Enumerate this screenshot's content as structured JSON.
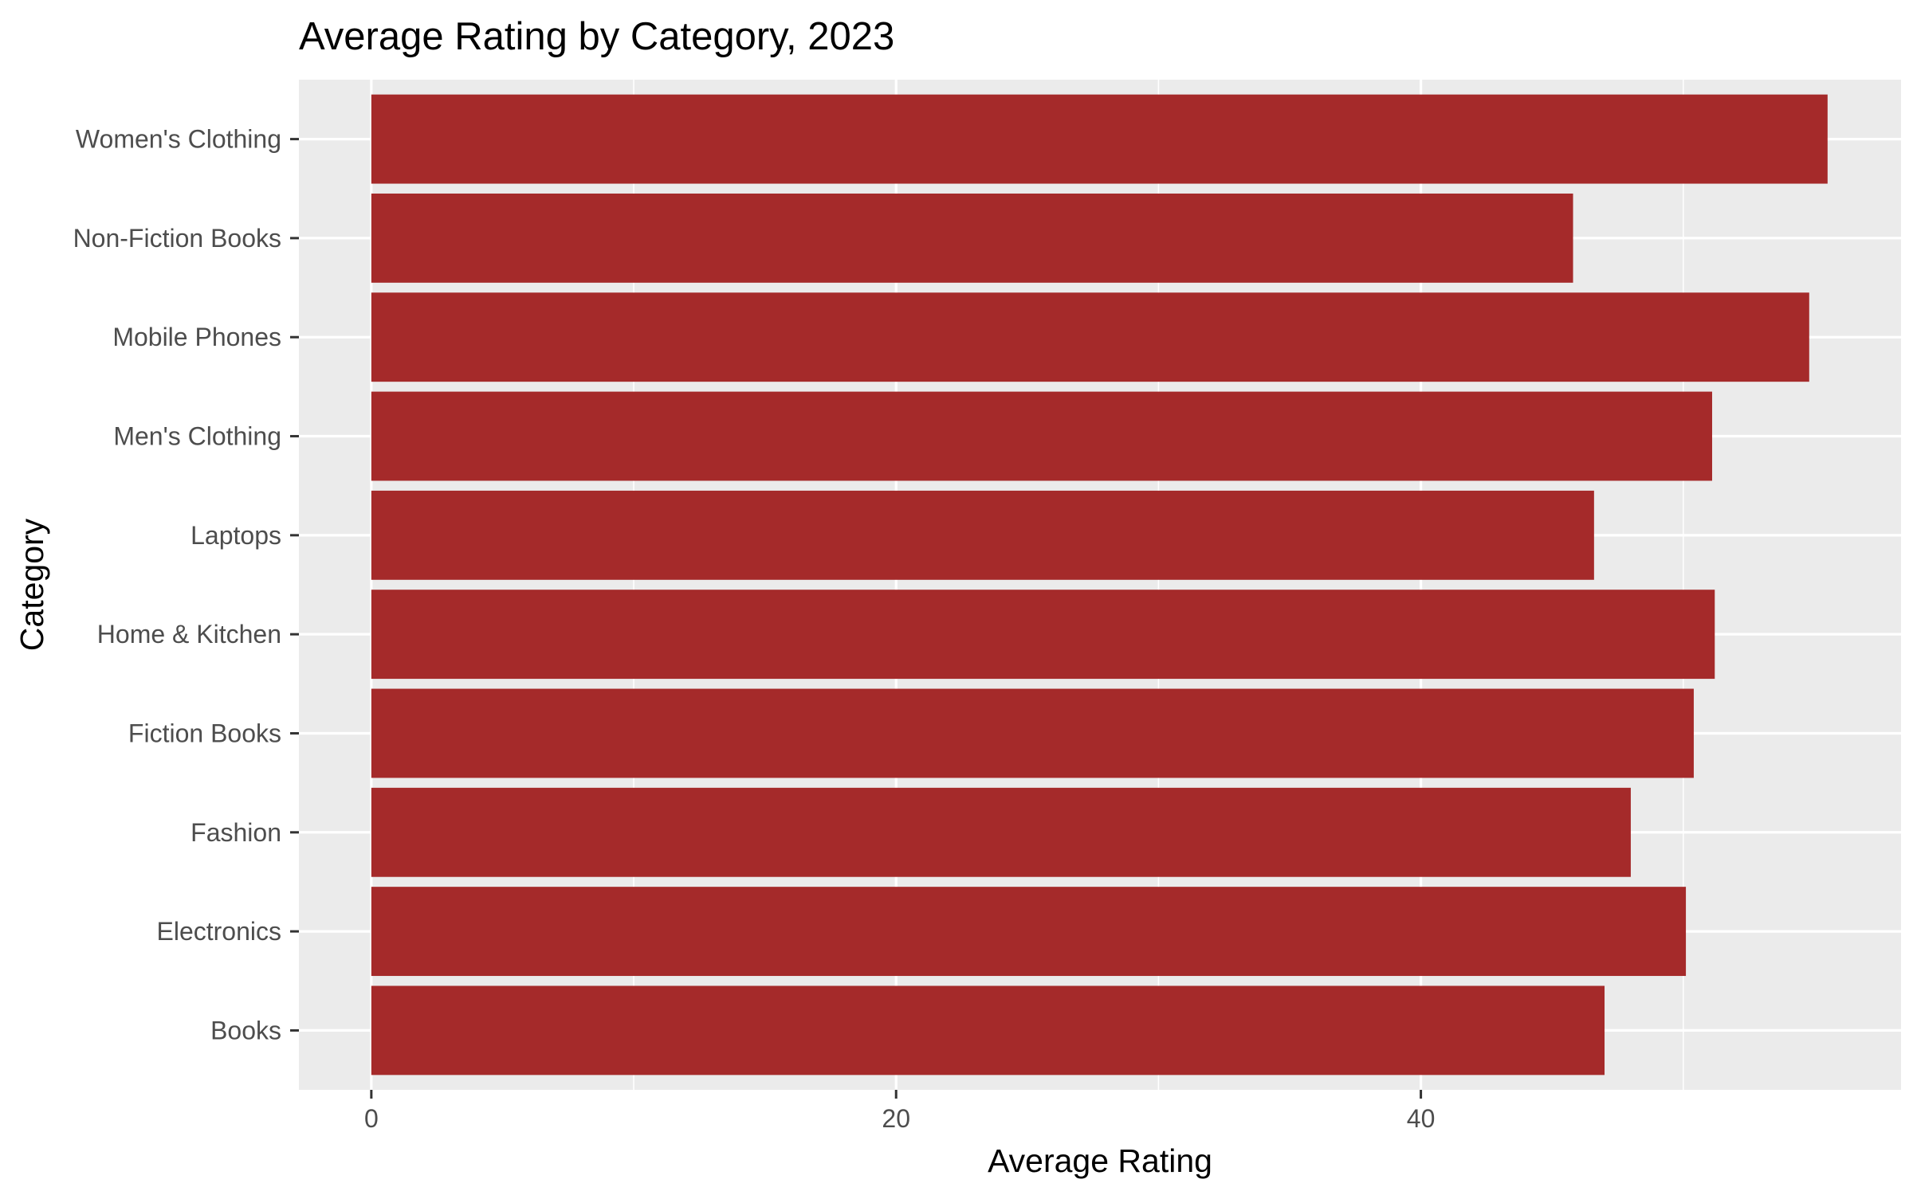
{
  "chart_data": {
    "type": "bar",
    "orientation": "horizontal",
    "title": "Average Rating by Category, 2023",
    "xlabel": "Average Rating",
    "ylabel": "Category",
    "categories": [
      "Books",
      "Electronics",
      "Fashion",
      "Fiction Books",
      "Home & Kitchen",
      "Laptops",
      "Men's Clothing",
      "Mobile Phones",
      "Non-Fiction Books",
      "Women's Clothing"
    ],
    "values": [
      47.0,
      50.1,
      48.0,
      50.4,
      51.2,
      46.6,
      51.1,
      54.8,
      45.8,
      55.5
    ],
    "xlim": [
      -2.76,
      58.3
    ],
    "xticks": [
      0,
      20,
      40
    ],
    "xtick_labels": [
      "0",
      "20",
      "40"
    ],
    "grid": true,
    "legend": "none",
    "colors": {
      "bar": "#A52A2A",
      "panel": "#EBEBEB",
      "gridline": "#FFFFFF",
      "tick": "#333333"
    }
  }
}
